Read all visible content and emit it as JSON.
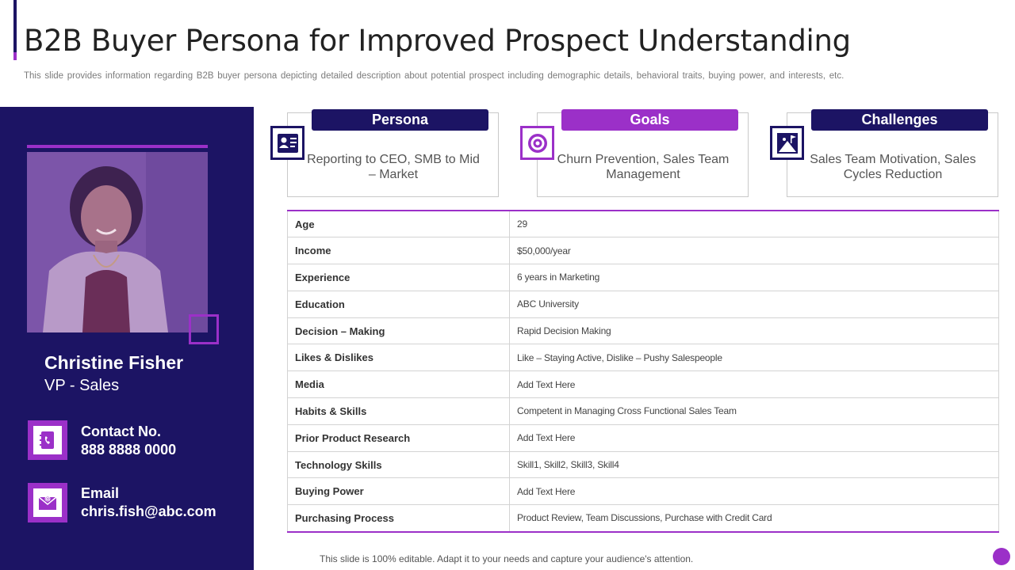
{
  "header": {
    "title": "B2B Buyer Persona for Improved Prospect Understanding",
    "subtitle": "This slide provides information regarding B2B buyer persona depicting detailed description about potential prospect including demographic details, behavioral traits, buying power, and interests, etc."
  },
  "profile": {
    "name": "Christine Fisher",
    "role": "VP - Sales",
    "contact_label": "Contact No.",
    "contact_value": "888 8888 0000",
    "email_label": "Email",
    "email_value": "chris.fish@abc.com",
    "contact_icon": "phone-book-icon",
    "email_icon": "envelope-icon"
  },
  "cards": [
    {
      "title": "Persona",
      "text": "Reporting to CEO, SMB to Mid – Market",
      "icon": "id-card-icon"
    },
    {
      "title": "Goals",
      "text": "Churn Prevention, Sales Team Management",
      "icon": "target-icon"
    },
    {
      "title": "Challenges",
      "text": "Sales Team Motivation, Sales Cycles Reduction",
      "icon": "summit-flag-icon"
    }
  ],
  "details": [
    {
      "label": "Age",
      "value": "29"
    },
    {
      "label": "Income",
      "value": "$50,000/year"
    },
    {
      "label": "Experience",
      "value": "6 years in Marketing"
    },
    {
      "label": "Education",
      "value": "ABC University"
    },
    {
      "label": "Decision – Making",
      "value": "Rapid Decision Making"
    },
    {
      "label": "Likes & Dislikes",
      "value": "Like – Staying Active, Dislike – Pushy Salespeople"
    },
    {
      "label": "Media",
      "value": "Add Text Here"
    },
    {
      "label": "Habits & Skills",
      "value": "Competent in Managing Cross Functional Sales Team"
    },
    {
      "label": "Prior Product Research",
      "value": "Add Text Here"
    },
    {
      "label": "Technology Skills",
      "value": "Skill1, Skill2, Skill3, Skill4"
    },
    {
      "label": "Buying Power",
      "value": "Add Text Here"
    },
    {
      "label": "Purchasing Process",
      "value": "Product Review, Team Discussions, Purchase with Credit Card"
    }
  ],
  "footer": {
    "note": "This slide is 100% editable. Adapt it to your needs and capture your audience's attention."
  },
  "colors": {
    "navy": "#1c1464",
    "purple": "#9b30c8"
  }
}
